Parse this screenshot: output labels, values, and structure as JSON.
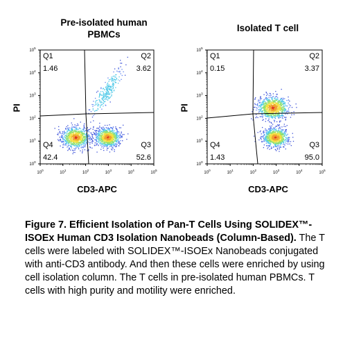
{
  "chart_data": [
    {
      "type": "scatter",
      "title": "Pre-isolated human PBMCs",
      "xlabel": "CD3-APC",
      "ylabel": "PI",
      "x_scale": "log",
      "y_scale": "log",
      "xlim": [
        1,
        100000
      ],
      "ylim": [
        1,
        100000
      ],
      "x_ticks": [
        "10^0",
        "10^1",
        "10^2",
        "10^3",
        "10^4",
        "10^5"
      ],
      "y_ticks": [
        "10^0",
        "10^1",
        "10^2",
        "10^3",
        "10^4",
        "10^5"
      ],
      "quadrants": [
        {
          "name": "Q1",
          "percent": "1.46"
        },
        {
          "name": "Q2",
          "percent": "3.62"
        },
        {
          "name": "Q3",
          "percent": "52.6"
        },
        {
          "name": "Q4",
          "percent": "42.4"
        }
      ],
      "populations": [
        {
          "x": 35,
          "y": 15,
          "spread": 0.5
        },
        {
          "x": 900,
          "y": 15,
          "spread": 0.45
        },
        {
          "x": 800,
          "y": 1500,
          "spread": 0.55
        }
      ]
    },
    {
      "type": "scatter",
      "title": "Isolated T cell",
      "xlabel": "CD3-APC",
      "ylabel": "PI",
      "x_scale": "log",
      "y_scale": "log",
      "xlim": [
        1,
        100000
      ],
      "ylim": [
        1,
        100000
      ],
      "x_ticks": [
        "10^0",
        "10^1",
        "10^2",
        "10^3",
        "10^4",
        "10^5"
      ],
      "y_ticks": [
        "10^0",
        "10^1",
        "10^2",
        "10^3",
        "10^4",
        "10^5"
      ],
      "quadrants": [
        {
          "name": "Q1",
          "percent": "0.15"
        },
        {
          "name": "Q2",
          "percent": "3.37"
        },
        {
          "name": "Q3",
          "percent": "95.0"
        },
        {
          "name": "Q4",
          "percent": "1.43"
        }
      ],
      "populations": [
        {
          "x": 900,
          "y": 15,
          "spread": 0.45
        },
        {
          "x": 700,
          "y": 300,
          "spread": 0.55
        }
      ]
    }
  ],
  "caption": {
    "bold": "Figure 7. Efficient Isolation of Pan-T Cells Using SOLIDEX™-ISOEx Human CD3 Isolation Nanobeads (Column-Based).",
    "text": " The T cells were labeled with SOLIDEX™-ISOEx Nanobeads conjugated with anti-CD3 antibody. And then these cells were enriched by using cell isolation column. The T cells in pre-isolated human PBMCs. T cells with high purity and motility were enriched."
  }
}
